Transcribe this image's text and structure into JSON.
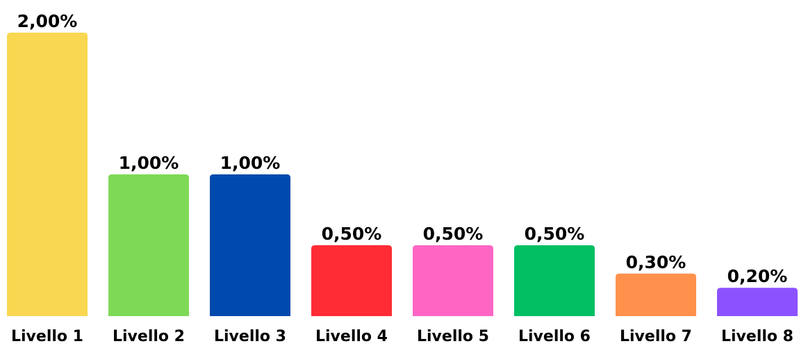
{
  "chart_data": {
    "type": "bar",
    "categories": [
      "Livello 1",
      "Livello 2",
      "Livello 3",
      "Livello 4",
      "Livello 5",
      "Livello 6",
      "Livello 7",
      "Livello 8"
    ],
    "values": [
      2.0,
      1.0,
      1.0,
      0.5,
      0.5,
      0.5,
      0.3,
      0.2
    ],
    "data_labels": [
      "2,00%",
      "1,00%",
      "1,00%",
      "0,50%",
      "0,50%",
      "0,50%",
      "0,30%",
      "0,20%"
    ],
    "colors": [
      "#F9D750",
      "#7ED957",
      "#004AAD",
      "#FF2C35",
      "#FF66C4",
      "#00BF63",
      "#FF914D",
      "#8C52FF"
    ],
    "title": "",
    "xlabel": "",
    "ylabel": "",
    "grid": false,
    "legend": false,
    "axis_visible": false
  }
}
